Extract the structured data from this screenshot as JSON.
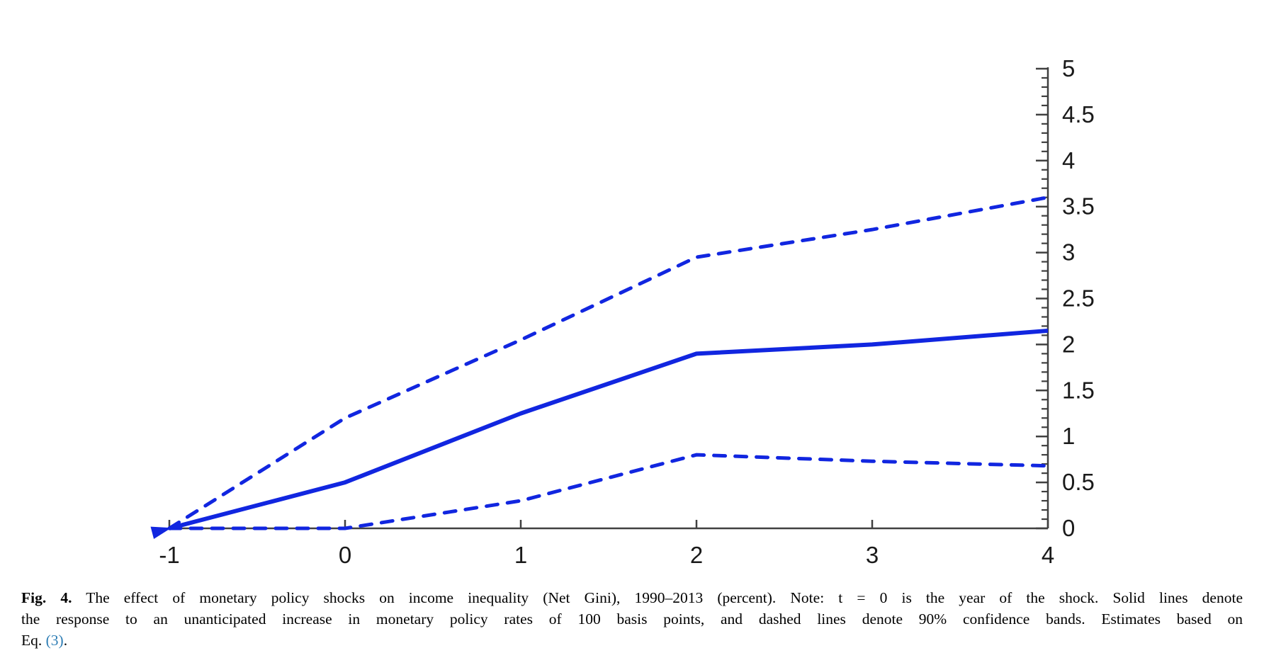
{
  "caption": {
    "fig_label": "Fig. 4.",
    "line1_rest": "The effect of monetary policy shocks on income inequality (Net Gini), 1990–2013 (percent). Note: t = 0 is the year of the shock. Solid lines denote",
    "line2": "the response to an unanticipated increase in monetary policy rates of 100 basis points, and dashed lines denote 90% confidence bands. Estimates based on",
    "line3_prefix": "Eq. ",
    "line3_link": "(3)",
    "line3_suffix": "."
  },
  "chart_data": {
    "type": "line",
    "title": "",
    "xlabel": "",
    "ylabel": "",
    "x": [
      -1,
      0,
      1,
      2,
      3,
      4
    ],
    "series": [
      {
        "name": "response-to-100bp-shock",
        "style": "solid",
        "values": [
          0,
          0.5,
          1.25,
          1.9,
          2.0,
          2.15
        ]
      },
      {
        "name": "upper-90pct-confidence-band",
        "style": "dashed",
        "values": [
          0,
          1.2,
          2.05,
          2.95,
          3.25,
          3.6
        ]
      },
      {
        "name": "lower-90pct-confidence-band",
        "style": "dashed",
        "values": [
          0,
          0,
          0.3,
          0.8,
          0.73,
          0.68
        ]
      }
    ],
    "xlim": [
      -1,
      4
    ],
    "ylim": [
      0,
      5
    ],
    "x_ticks": [
      -1,
      0,
      1,
      2,
      3,
      4
    ],
    "x_tick_labels": [
      "-1",
      "0",
      "1",
      "2",
      "3",
      "4"
    ],
    "y_major_ticks": [
      0,
      0.5,
      1,
      1.5,
      2,
      2.5,
      3,
      3.5,
      4,
      4.5,
      5
    ],
    "y_tick_labels": [
      "0",
      "0.5",
      "1",
      "1.5",
      "2",
      "2.5",
      "3",
      "3.5",
      "4",
      "4.5",
      "5"
    ],
    "y_minor_step": 0.1,
    "y_axis_side": "right",
    "grid": false,
    "legend": "none",
    "line_color": "#1126e0",
    "axis_color": "#404040",
    "tick_label_color": "#1a1a1a",
    "start_arrow_at": [
      -1,
      0
    ]
  }
}
